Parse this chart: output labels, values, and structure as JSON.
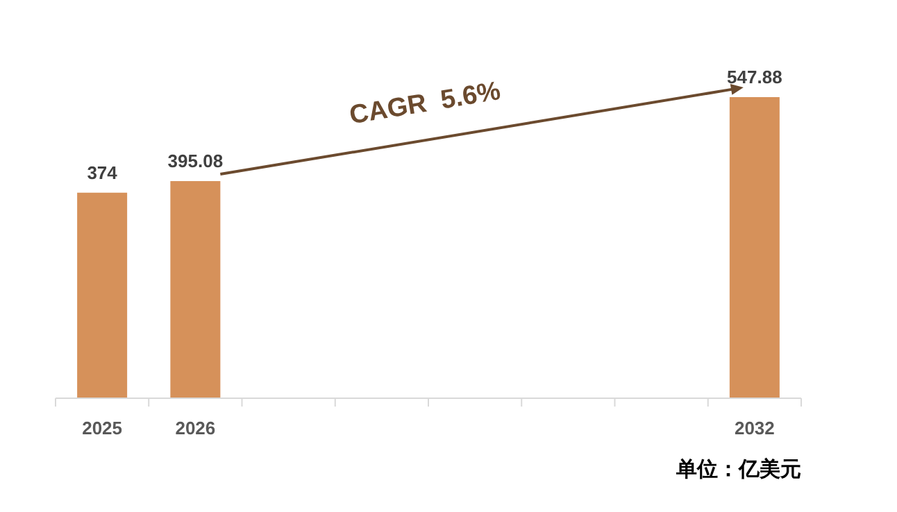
{
  "chart_data": {
    "type": "bar",
    "categories": [
      "2025",
      "2026",
      null,
      null,
      null,
      null,
      null,
      "2032"
    ],
    "values": [
      374,
      395.08,
      null,
      null,
      null,
      null,
      null,
      547.88
    ],
    "color": "#d6915a",
    "data_labels": true,
    "annotations": [
      "CAGR  5.6%",
      "单位：亿美元"
    ]
  }
}
